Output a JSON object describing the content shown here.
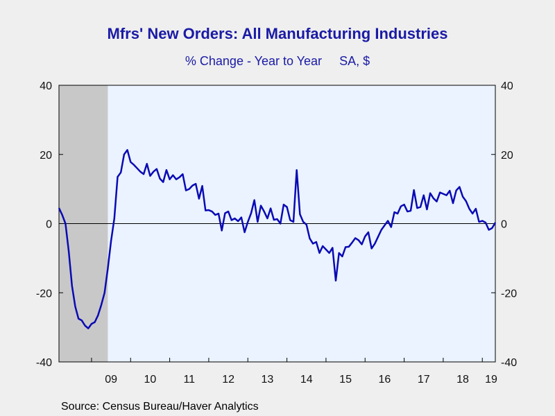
{
  "title": "Mfrs' New Orders: All Manufacturing Industries",
  "subtitle": {
    "left": "% Change - Year to Year",
    "right": "SA, $"
  },
  "source": "Source:  Census Bureau/Haver Analytics",
  "colors": {
    "line": "#0a0ab4",
    "plot_background": "#eaf3ff",
    "recession_shade": "#c8c8c8",
    "title": "#1a1aa6"
  },
  "chart_data": {
    "type": "line",
    "title": "Mfrs' New Orders: All Manufacturing Industries",
    "subtitle": "% Change - Year to Year    SA, $",
    "xlabel": "",
    "ylabel": "",
    "x_ticks": [
      "09",
      "10",
      "11",
      "12",
      "13",
      "14",
      "15",
      "16",
      "17",
      "18",
      "19"
    ],
    "y_ticks": [
      40,
      20,
      0,
      -20,
      -40
    ],
    "ylim": [
      -40,
      40
    ],
    "x_range": [
      "2008-03",
      "2019-05"
    ],
    "shaded_periods": [
      [
        "2008-03",
        "2009-06"
      ]
    ],
    "zero_line": true,
    "grid": false,
    "series": [
      {
        "x": [
          "2008-03",
          "2008-04",
          "2008-05",
          "2008-06",
          "2008-07",
          "2008-08",
          "2008-09",
          "2008-10",
          "2008-11",
          "2008-12",
          "2009-01",
          "2009-02",
          "2009-03",
          "2009-04",
          "2009-05",
          "2009-06",
          "2009-07",
          "2009-08",
          "2009-09",
          "2009-10",
          "2009-11",
          "2009-12",
          "2010-01",
          "2010-02",
          "2010-03",
          "2010-04",
          "2010-05",
          "2010-06",
          "2010-07",
          "2010-08",
          "2010-09",
          "2010-10",
          "2010-11",
          "2010-12",
          "2011-01",
          "2011-02",
          "2011-03",
          "2011-04",
          "2011-05",
          "2011-06",
          "2011-07",
          "2011-08",
          "2011-09",
          "2011-10",
          "2011-11",
          "2011-12",
          "2012-01",
          "2012-02",
          "2012-03",
          "2012-04",
          "2012-05",
          "2012-06",
          "2012-07",
          "2012-08",
          "2012-09",
          "2012-10",
          "2012-11",
          "2012-12",
          "2013-01",
          "2013-02",
          "2013-03",
          "2013-04",
          "2013-05",
          "2013-06",
          "2013-07",
          "2013-08",
          "2013-09",
          "2013-10",
          "2013-11",
          "2013-12",
          "2014-01",
          "2014-02",
          "2014-03",
          "2014-04",
          "2014-05",
          "2014-06",
          "2014-07",
          "2014-08",
          "2014-09",
          "2014-10",
          "2014-11",
          "2014-12",
          "2015-01",
          "2015-02",
          "2015-03",
          "2015-04",
          "2015-05",
          "2015-06",
          "2015-07",
          "2015-08",
          "2015-09",
          "2015-10",
          "2015-11",
          "2015-12",
          "2016-01",
          "2016-02",
          "2016-03",
          "2016-04",
          "2016-05",
          "2016-06",
          "2016-07",
          "2016-08",
          "2016-09",
          "2016-10",
          "2016-11",
          "2016-12",
          "2017-01",
          "2017-02",
          "2017-03",
          "2017-04",
          "2017-05",
          "2017-06",
          "2017-07",
          "2017-08",
          "2017-09",
          "2017-10",
          "2017-11",
          "2017-12",
          "2018-01",
          "2018-02",
          "2018-03",
          "2018-04",
          "2018-05",
          "2018-06",
          "2018-07",
          "2018-08",
          "2018-09",
          "2018-10",
          "2018-11",
          "2018-12",
          "2019-01",
          "2019-02",
          "2019-03",
          "2019-04",
          "2019-05"
        ],
        "values": [
          4.5,
          2.5,
          0,
          -8,
          -18,
          -24,
          -27.5,
          -28,
          -29.5,
          -30.3,
          -29,
          -28.5,
          -26.5,
          -23.5,
          -20,
          -13,
          -5,
          1.5,
          13.5,
          14.8,
          20,
          21.3,
          17.8,
          17,
          16,
          15,
          14.3,
          17.3,
          13.8,
          15,
          15.8,
          13,
          12,
          15.5,
          12.8,
          14,
          12.8,
          13.4,
          14.3,
          9.6,
          10,
          11,
          11.5,
          7.2,
          10.9,
          3.8,
          3.9,
          3.5,
          2.5,
          2.9,
          -2,
          3,
          3.5,
          1,
          1.5,
          0.7,
          1.8,
          -2.5,
          0.5,
          3,
          6.8,
          0.5,
          5.2,
          3.5,
          1.5,
          4.4,
          1.1,
          1.3,
          0,
          5.5,
          4.8,
          1,
          0.5,
          15.5,
          2.7,
          0.5,
          -0.3,
          -4.3,
          -5.8,
          -5.3,
          -8.5,
          -6.5,
          -7.5,
          -8.5,
          -7,
          -16.5,
          -8.5,
          -9.5,
          -6.8,
          -6.7,
          -5.5,
          -4.2,
          -4.8,
          -6,
          -3.7,
          -2.5,
          -7.2,
          -5.8,
          -3.8,
          -1.8,
          -0.5,
          0.8,
          -1,
          3.3,
          2.9,
          5,
          5.5,
          3.5,
          3.7,
          9.7,
          4.5,
          4.8,
          8.2,
          4.1,
          8.8,
          7.3,
          6.4,
          9,
          8.6,
          8.2,
          9.5,
          5.9,
          9.6,
          10.6,
          7.8,
          6.5,
          4.3,
          2.9,
          4.3,
          0.5,
          0.8,
          0.3,
          -1.8,
          -1.3,
          0.3
        ]
      }
    ]
  }
}
